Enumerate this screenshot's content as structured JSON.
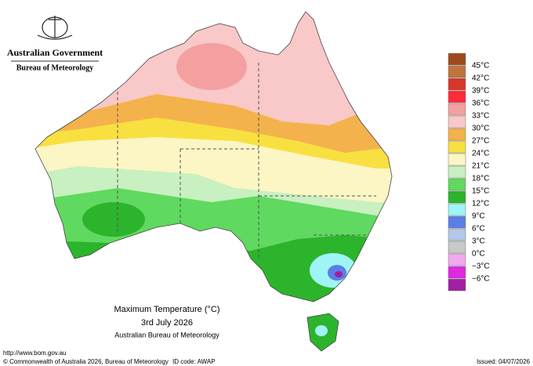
{
  "header": {
    "agency": "Australian Government",
    "bureau": "Bureau of Meteorology"
  },
  "map": {
    "title": "Maximum Temperature (°C)",
    "date": "3rd July 2026",
    "source": "Australian Bureau of Meteorology"
  },
  "legend": {
    "items": [
      {
        "label": "45°C",
        "color": "#9c4a1e"
      },
      {
        "label": "42°C",
        "color": "#c0743c"
      },
      {
        "label": "39°C",
        "color": "#d8362a"
      },
      {
        "label": "36°C",
        "color": "#ff2a3a"
      },
      {
        "label": "33°C",
        "color": "#f4a0a0"
      },
      {
        "label": "30°C",
        "color": "#f9c8c8"
      },
      {
        "label": "27°C",
        "color": "#f4b24c"
      },
      {
        "label": "24°C",
        "color": "#f8e040"
      },
      {
        "label": "21°C",
        "color": "#fbf6c4"
      },
      {
        "label": "18°C",
        "color": "#c8f0c0"
      },
      {
        "label": "15°C",
        "color": "#5fd95f"
      },
      {
        "label": "12°C",
        "color": "#2cb42c"
      },
      {
        "label": "9°C",
        "color": "#9ff5f5"
      },
      {
        "label": "6°C",
        "color": "#5a7ee6"
      },
      {
        "label": "3°C",
        "color": "#b4c8e6"
      },
      {
        "label": "0°C",
        "color": "#c8c8c8"
      },
      {
        "label": "−3°C",
        "color": "#f0a8f0"
      },
      {
        "label": "−6°C",
        "color": "#e028e0"
      }
    ],
    "last_color": "#a020a0"
  },
  "footer": {
    "url": "http://www.bom.gov.au",
    "copyright": "© Commonwealth of Australia 2026, Bureau of Meteorology",
    "id_code": "ID code: AWAP",
    "issued": "Issued: 04/07/2026"
  }
}
